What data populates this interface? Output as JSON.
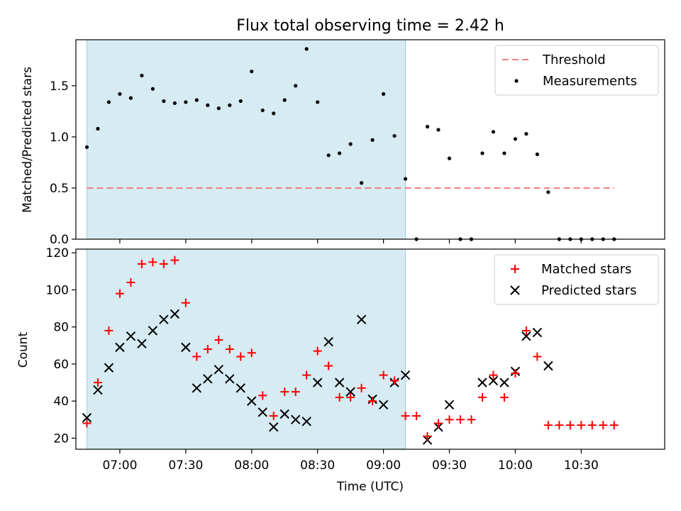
{
  "title": "Flux total observing time = 2.42 h",
  "xlabel": "Time (UTC)",
  "x_ticks": [
    "07:00",
    "07:30",
    "08:00",
    "08:30",
    "09:00",
    "09:30",
    "10:00",
    "10:30"
  ],
  "chart_data": [
    {
      "type": "scatter",
      "panel": "top",
      "ylabel": "Matched/Predicted stars",
      "ylim": [
        0,
        1.95
      ],
      "yticks": [
        0.0,
        0.5,
        1.0,
        1.5
      ],
      "xlim_minutes_utc": [
        "06:40",
        "11:08"
      ],
      "legend_position": "upper right",
      "shaded_interval": [
        "06:45",
        "09:10"
      ],
      "threshold": {
        "name": "Threshold",
        "value": 0.5,
        "x_range": [
          "06:45",
          "10:45"
        ],
        "color": "#f08080"
      },
      "series": [
        {
          "name": "Measurements",
          "color": "#000000",
          "x": [
            "06:45",
            "06:50",
            "06:55",
            "07:00",
            "07:05",
            "07:10",
            "07:15",
            "07:20",
            "07:25",
            "07:30",
            "07:35",
            "07:40",
            "07:45",
            "07:50",
            "07:55",
            "08:00",
            "08:05",
            "08:10",
            "08:15",
            "08:20",
            "08:25",
            "08:30",
            "08:35",
            "08:40",
            "08:45",
            "08:50",
            "08:55",
            "09:00",
            "09:05",
            "09:10",
            "09:15",
            "09:20",
            "09:25",
            "09:30",
            "09:35",
            "09:40",
            "09:45",
            "09:50",
            "09:55",
            "10:00",
            "10:05",
            "10:10",
            "10:15",
            "10:20",
            "10:25",
            "10:30",
            "10:35",
            "10:40",
            "10:45"
          ],
          "y": [
            0.9,
            1.08,
            1.34,
            1.42,
            1.38,
            1.6,
            1.47,
            1.35,
            1.33,
            1.34,
            1.36,
            1.31,
            1.28,
            1.31,
            1.35,
            1.64,
            1.26,
            1.23,
            1.36,
            1.5,
            1.86,
            1.34,
            0.82,
            0.84,
            0.93,
            0.55,
            0.97,
            1.42,
            1.01,
            0.59,
            0.0,
            1.1,
            1.07,
            0.79,
            0.0,
            0.0,
            0.84,
            1.05,
            0.84,
            0.98,
            1.03,
            0.83,
            0.46,
            0.0,
            0.0,
            0.0,
            0.0,
            0.0,
            0.0
          ]
        }
      ]
    },
    {
      "type": "scatter",
      "panel": "bottom",
      "ylabel": "Count",
      "ylim": [
        14,
        122
      ],
      "yticks": [
        20,
        40,
        60,
        80,
        100,
        120
      ],
      "legend_position": "upper right",
      "shaded_interval": [
        "06:45",
        "09:10"
      ],
      "series": [
        {
          "name": "Matched stars",
          "marker": "+",
          "color": "#ff0000",
          "x": [
            "06:45",
            "06:50",
            "06:55",
            "07:00",
            "07:05",
            "07:10",
            "07:15",
            "07:20",
            "07:25",
            "07:30",
            "07:35",
            "07:40",
            "07:45",
            "07:50",
            "07:55",
            "08:00",
            "08:05",
            "08:10",
            "08:15",
            "08:20",
            "08:25",
            "08:30",
            "08:35",
            "08:40",
            "08:45",
            "08:50",
            "08:55",
            "09:00",
            "09:05",
            "09:10",
            "09:15",
            "09:20",
            "09:25",
            "09:30",
            "09:35",
            "09:40",
            "09:45",
            "09:50",
            "09:55",
            "10:00",
            "10:05",
            "10:10",
            "10:15",
            "10:20",
            "10:25",
            "10:30",
            "10:35",
            "10:40",
            "10:45"
          ],
          "y": [
            28,
            50,
            78,
            98,
            104,
            114,
            115,
            114,
            116,
            93,
            64,
            68,
            73,
            68,
            64,
            66,
            43,
            32,
            45,
            45,
            54,
            67,
            59,
            42,
            42,
            47,
            40,
            54,
            51,
            32,
            32,
            21,
            28,
            30,
            30,
            30,
            42,
            54,
            42,
            55,
            78,
            64,
            27,
            27,
            27,
            27,
            27,
            27,
            27
          ]
        },
        {
          "name": "Predicted stars",
          "marker": "x",
          "color": "#000000",
          "x": [
            "06:45",
            "06:50",
            "06:55",
            "07:00",
            "07:05",
            "07:10",
            "07:15",
            "07:20",
            "07:25",
            "07:30",
            "07:35",
            "07:40",
            "07:45",
            "07:50",
            "07:55",
            "08:00",
            "08:05",
            "08:10",
            "08:15",
            "08:20",
            "08:25",
            "08:30",
            "08:35",
            "08:40",
            "08:45",
            "08:50",
            "08:55",
            "09:00",
            "09:05",
            "09:10",
            "09:20",
            "09:25",
            "09:30",
            "09:45",
            "09:50",
            "09:55",
            "10:00",
            "10:05",
            "10:10",
            "10:15"
          ],
          "y": [
            31,
            46,
            58,
            69,
            75,
            71,
            78,
            84,
            87,
            69,
            47,
            52,
            57,
            52,
            47,
            40,
            34,
            26,
            33,
            30,
            29,
            50,
            72,
            50,
            45,
            84,
            41,
            38,
            50,
            54,
            19,
            26,
            38,
            50,
            51,
            50,
            56,
            75,
            77,
            59
          ]
        }
      ]
    }
  ]
}
